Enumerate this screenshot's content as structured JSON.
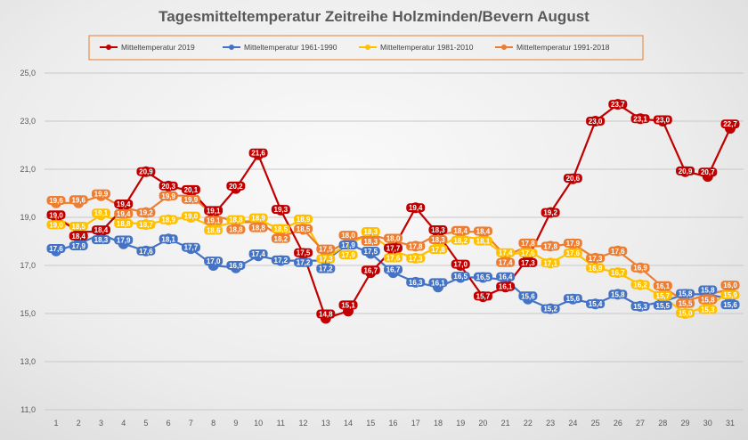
{
  "chart_data": {
    "type": "line",
    "title": "Tagesmitteltemperatur Zeitreihe Holzminden/Bevern August",
    "xlabel": "",
    "ylabel": "",
    "ylim": [
      11,
      25
    ],
    "yticks": [
      "11,0",
      "13,0",
      "15,0",
      "17,0",
      "19,0",
      "21,0",
      "23,0",
      "25,0"
    ],
    "grid": true,
    "legend_position": "top",
    "x": [
      1,
      2,
      3,
      4,
      5,
      6,
      7,
      8,
      9,
      10,
      11,
      12,
      13,
      14,
      15,
      16,
      17,
      18,
      19,
      20,
      21,
      22,
      23,
      24,
      25,
      26,
      27,
      28,
      29,
      30,
      31
    ],
    "series": [
      {
        "name": "Mitteltemperatur 2019",
        "color": "#c00000",
        "values": [
          19.0,
          18.4,
          18.4,
          19.4,
          20.9,
          20.3,
          20.1,
          19.1,
          20.2,
          21.6,
          19.3,
          17.5,
          14.8,
          15.1,
          16.7,
          17.7,
          19.4,
          18.3,
          17.0,
          15.7,
          16.1,
          17.3,
          19.2,
          20.6,
          23.0,
          23.7,
          23.1,
          23.0,
          20.9,
          20.7,
          22.7
        ]
      },
      {
        "name": "Mitteltemperatur 1961-1990",
        "color": "#4472c4",
        "values": [
          17.6,
          17.9,
          18.3,
          17.9,
          17.6,
          18.1,
          17.7,
          17.0,
          16.9,
          17.4,
          17.2,
          17.2,
          17.2,
          17.9,
          17.5,
          16.7,
          16.3,
          16.1,
          16.5,
          16.5,
          16.4,
          15.6,
          15.2,
          15.6,
          15.4,
          15.8,
          15.3,
          15.5,
          15.8,
          15.8,
          15.6
        ]
      },
      {
        "name": "Mitteltemperatur 1981-2010",
        "color": "#ffc000",
        "values": [
          19.0,
          18.5,
          19.1,
          18.8,
          18.7,
          18.9,
          19.0,
          18.6,
          18.8,
          18.9,
          18.5,
          18.9,
          17.3,
          17.9,
          18.3,
          17.6,
          17.3,
          17.8,
          18.2,
          18.1,
          17.4,
          17.6,
          17.1,
          17.6,
          16.9,
          16.7,
          16.2,
          15.7,
          15.0,
          15.3,
          15.9
        ]
      },
      {
        "name": "Mitteltemperatur 1991-2018",
        "color": "#ed7d31",
        "values": [
          19.6,
          19.6,
          19.9,
          19.4,
          19.2,
          19.9,
          19.9,
          19.1,
          18.8,
          18.8,
          18.2,
          18.5,
          17.5,
          18.0,
          18.3,
          18.0,
          17.8,
          18.3,
          18.4,
          18.4,
          17.4,
          17.8,
          17.8,
          17.9,
          17.3,
          17.6,
          16.9,
          16.1,
          15.5,
          15.8,
          16.0
        ]
      }
    ]
  }
}
